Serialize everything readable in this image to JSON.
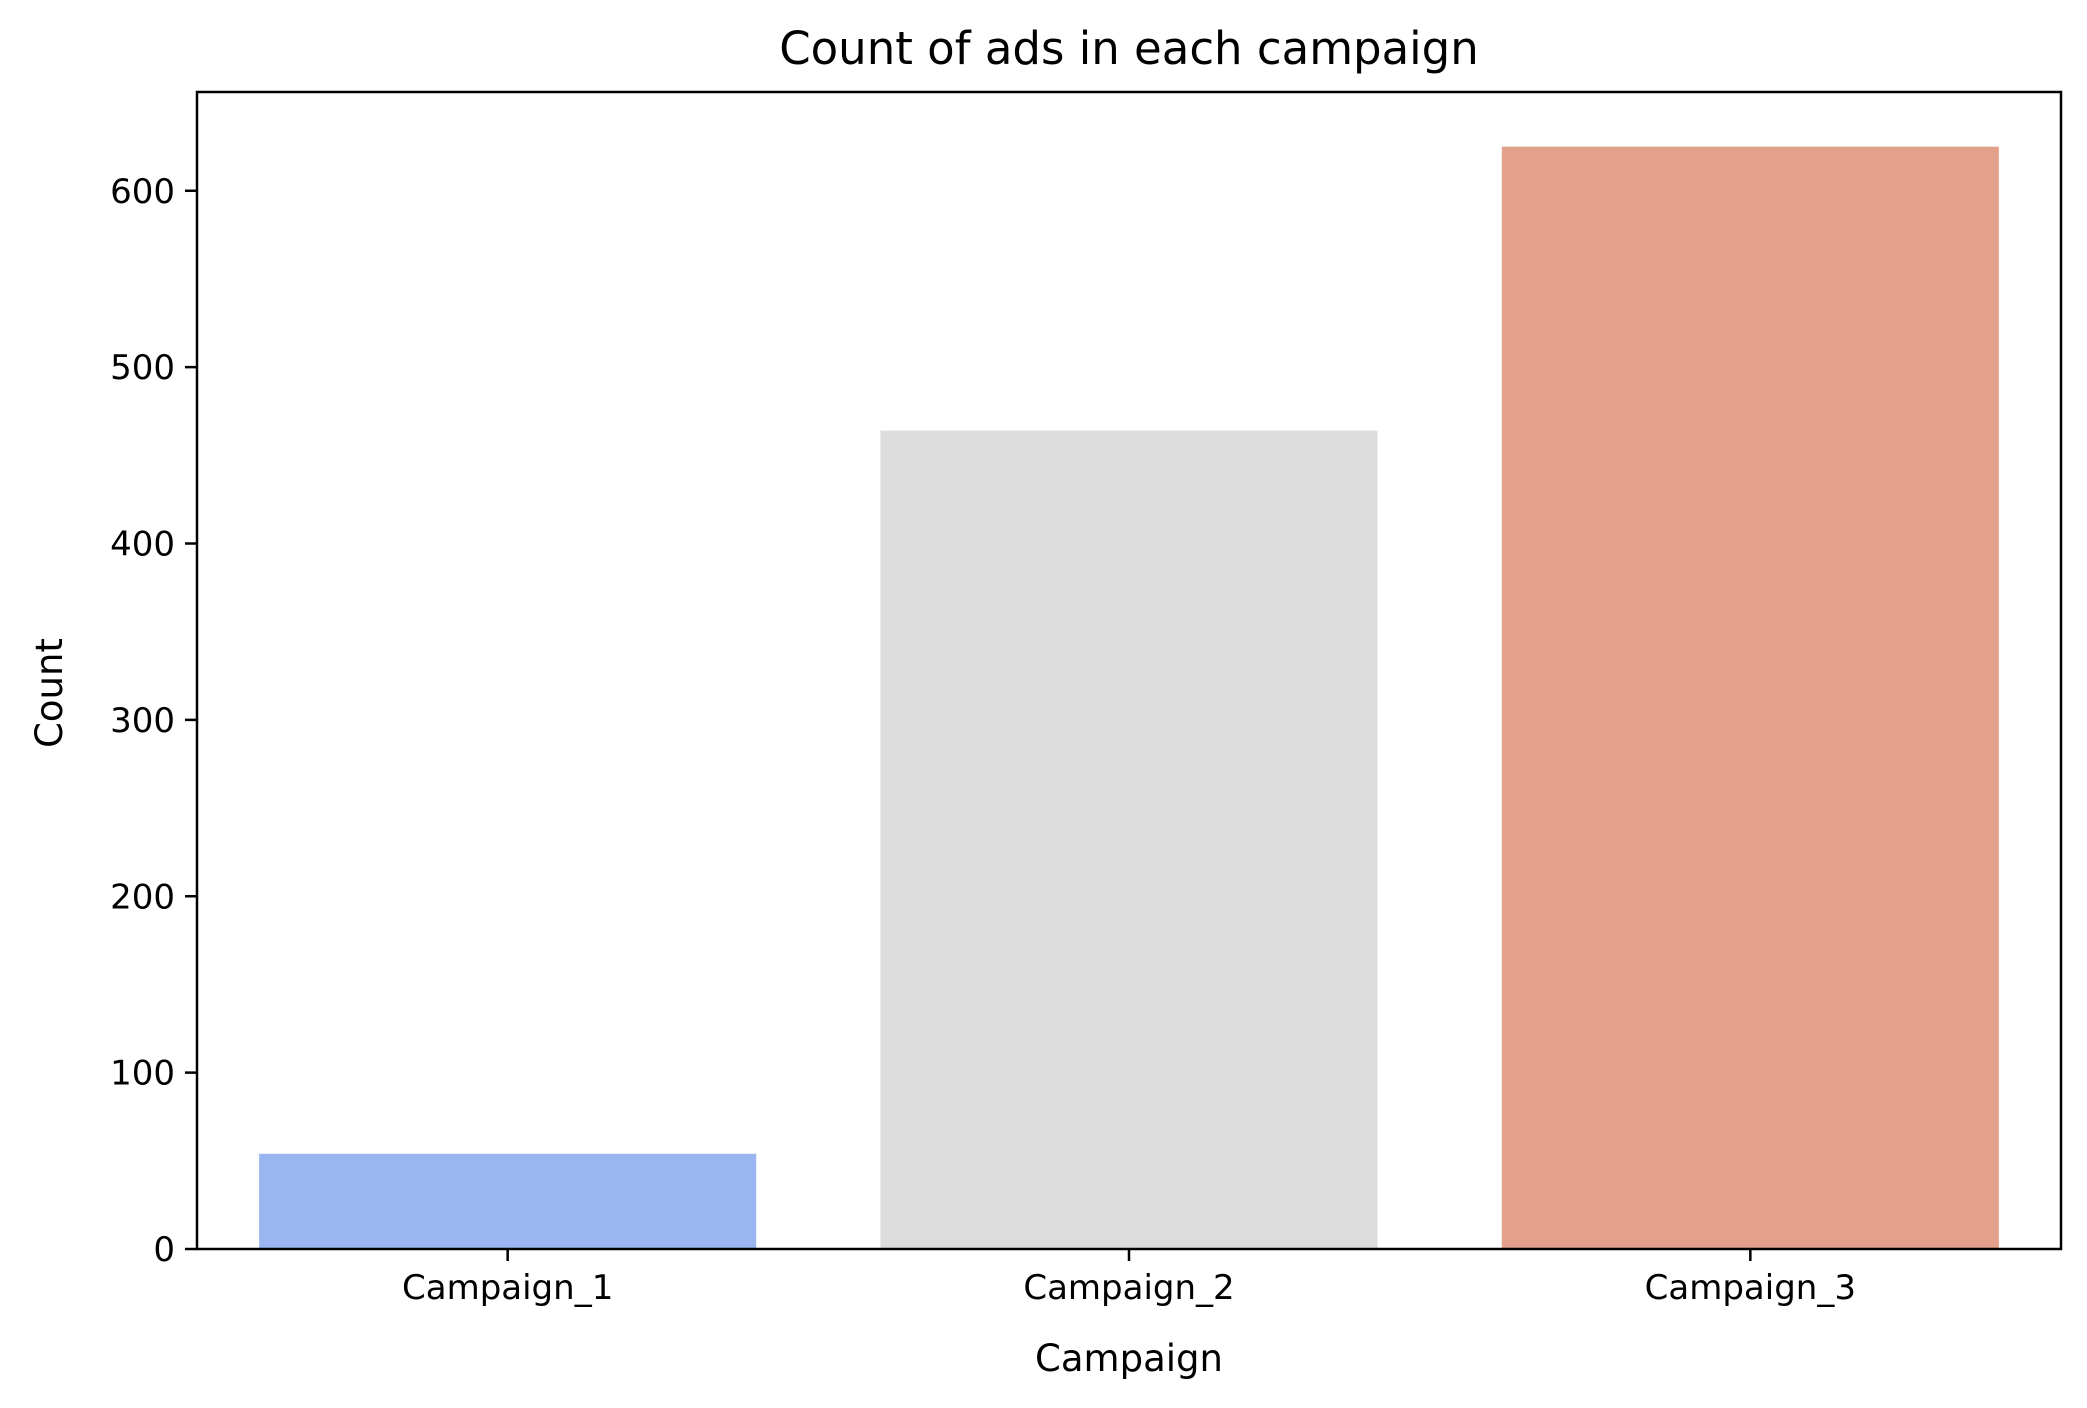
{
  "chart_data": {
    "type": "bar",
    "title": "Count of ads in each campaign",
    "xlabel": "Campaign",
    "ylabel": "Count",
    "categories": [
      "Campaign_1",
      "Campaign_2",
      "Campaign_3"
    ],
    "values": [
      54,
      464,
      625
    ],
    "colors": [
      "#9ab5f0",
      "#dcdcdc",
      "#e3a08a"
    ],
    "ylim": [
      0,
      656
    ],
    "yticks": [
      0,
      100,
      200,
      300,
      400,
      500,
      600
    ],
    "grid": false,
    "legend": "none"
  }
}
